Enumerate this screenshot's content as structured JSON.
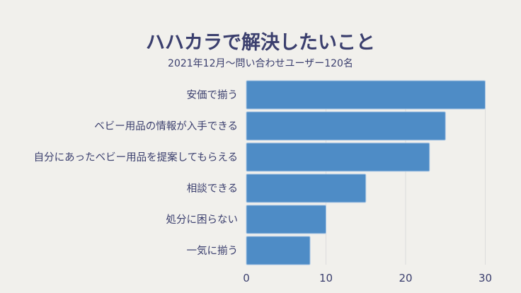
{
  "chart_data": {
    "type": "bar",
    "orientation": "horizontal",
    "title": "ハハカラで解決したいこと",
    "subtitle": "2021年12月～問い合わせユーザー120名",
    "categories": [
      "安価で揃う",
      "ベビー用品の情報が入手できる",
      "自分にあったベビー用品を提案してもらえる",
      "相談できる",
      "処分に困らない",
      "一気に揃う"
    ],
    "values": [
      30,
      25,
      23,
      15,
      10,
      8
    ],
    "xlim": [
      0,
      30
    ],
    "xticks": [
      "0",
      "10",
      "20",
      "30"
    ],
    "xlabel": "",
    "ylabel": "",
    "grid": true,
    "colors": {
      "bar": "#4e8cc6",
      "text": "#3b3f6e",
      "grid": "#dcdcdc"
    }
  }
}
